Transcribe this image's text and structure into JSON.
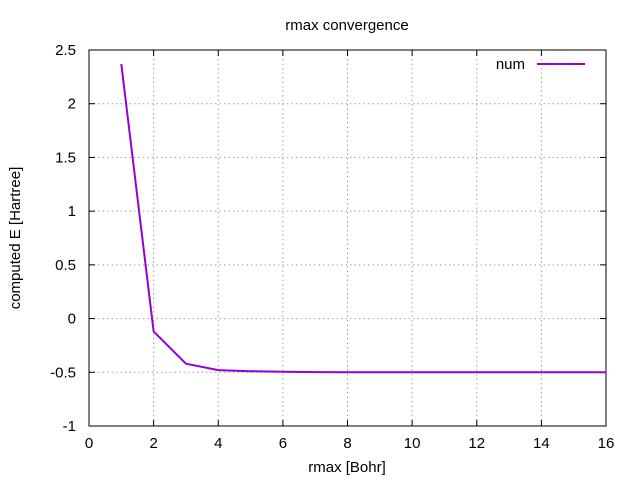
{
  "chart_data": {
    "type": "line",
    "title": "rmax convergence",
    "xlabel": "rmax [Bohr]",
    "ylabel": "computed E [Hartree]",
    "xlim": [
      0,
      16
    ],
    "ylim": [
      -1,
      2.5
    ],
    "xticks": [
      0,
      2,
      4,
      6,
      8,
      10,
      12,
      14,
      16
    ],
    "yticks": [
      -1,
      -0.5,
      0,
      0.5,
      1,
      1.5,
      2,
      2.5
    ],
    "xtick_labels": [
      "0",
      "2",
      "4",
      "6",
      "8",
      "10",
      "12",
      "14",
      "16"
    ],
    "ytick_labels": [
      "-1",
      "-0.5",
      "0",
      "0.5",
      "1",
      "1.5",
      "2",
      "2.5"
    ],
    "grid": true,
    "legend_position": "top-right",
    "series": [
      {
        "name": "num",
        "color": "#9400d3",
        "x": [
          1,
          2,
          3,
          4,
          5,
          6,
          7,
          8,
          9,
          10,
          11,
          12,
          13,
          14,
          15,
          16
        ],
        "y": [
          2.37,
          -0.12,
          -0.42,
          -0.48,
          -0.49,
          -0.495,
          -0.499,
          -0.5,
          -0.5,
          -0.5,
          -0.5,
          -0.5,
          -0.5,
          -0.5,
          -0.5,
          -0.5
        ]
      }
    ]
  }
}
